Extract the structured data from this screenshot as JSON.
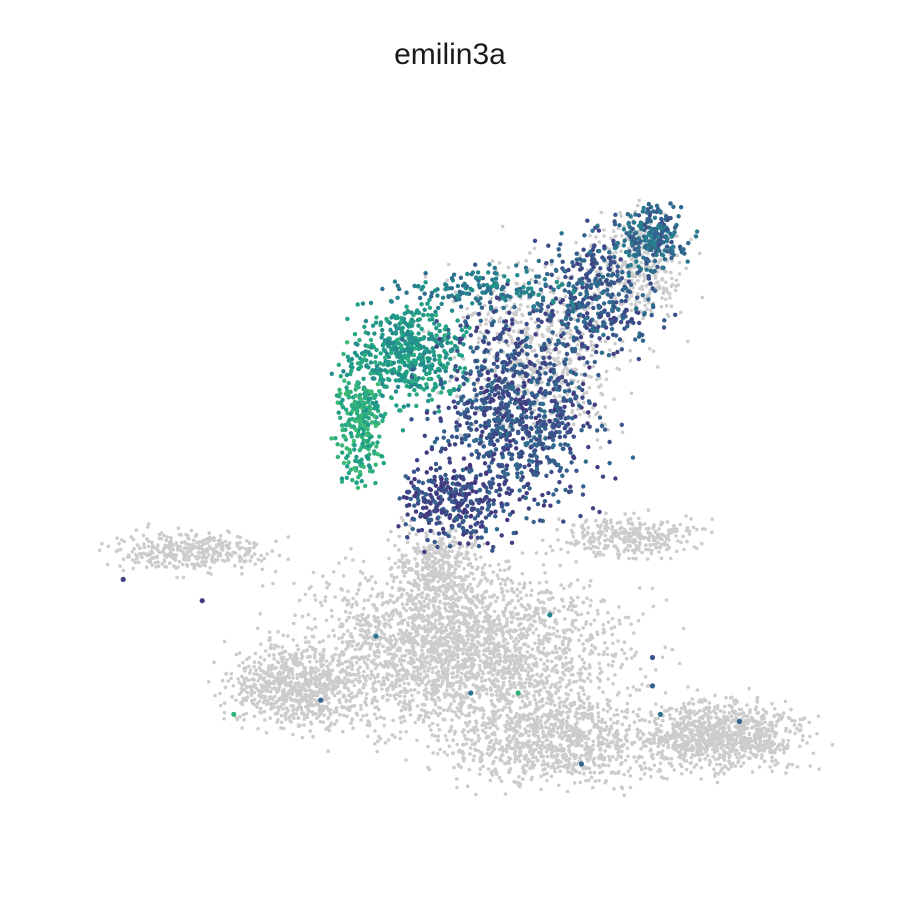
{
  "chart_data": {
    "type": "scatter",
    "title": "emilin3a",
    "xlabel": "",
    "ylabel": "",
    "axes_visible": false,
    "grid": false,
    "legend": "none",
    "xlim": [
      0,
      100
    ],
    "ylim": [
      0,
      100
    ],
    "colors": {
      "background_cells": "#cccccc",
      "expression_low": "#46337e",
      "expression_mid": "#277f8e",
      "expression_high": "#3fbc73"
    },
    "expression_scale": [
      0,
      1
    ],
    "series": [
      {
        "role": "non-expressing cells (grey)",
        "clusters": [
          {
            "cx": 51,
            "cy": 26,
            "sx": 14,
            "sy": 8,
            "n": 2600
          },
          {
            "cx": 30,
            "cy": 21,
            "sx": 6,
            "sy": 4,
            "n": 700
          },
          {
            "cx": 84,
            "cy": 14,
            "sx": 7,
            "sy": 3.5,
            "n": 900
          },
          {
            "cx": 63,
            "cy": 13,
            "sx": 10,
            "sy": 4,
            "n": 900
          },
          {
            "cx": 17,
            "cy": 40,
            "sx": 7,
            "sy": 2,
            "n": 350
          },
          {
            "cx": 72,
            "cy": 42,
            "sx": 6,
            "sy": 2,
            "n": 300
          },
          {
            "cx": 48,
            "cy": 38,
            "sx": 4,
            "sy": 4,
            "n": 350
          },
          {
            "cx": 60,
            "cy": 68,
            "sx": 8,
            "sy": 9,
            "n": 600
          },
          {
            "cx": 73,
            "cy": 80,
            "sx": 4,
            "sy": 5,
            "n": 350
          }
        ]
      },
      {
        "role": "expressing cells (viridis)",
        "clusters": [
          {
            "cx": 44,
            "cy": 68,
            "sx": 5,
            "sy": 5,
            "n": 500,
            "expr": 0.7
          },
          {
            "cx": 38,
            "cy": 58,
            "sx": 2,
            "sy": 6,
            "n": 250,
            "expr": 0.85
          },
          {
            "cx": 58,
            "cy": 60,
            "sx": 7,
            "sy": 10,
            "n": 900,
            "expr": 0.2
          },
          {
            "cx": 68,
            "cy": 76,
            "sx": 5,
            "sy": 6,
            "n": 350,
            "expr": 0.25
          },
          {
            "cx": 75,
            "cy": 84,
            "sx": 3,
            "sy": 3,
            "n": 220,
            "expr": 0.35
          },
          {
            "cx": 50,
            "cy": 47,
            "sx": 5,
            "sy": 4,
            "n": 300,
            "expr": 0.15
          },
          {
            "cx": 55,
            "cy": 77,
            "sx": 8,
            "sy": 2,
            "n": 150,
            "expr": 0.5
          }
        ]
      }
    ],
    "sparse_points": [
      {
        "x": 8,
        "y": 36,
        "expr": 0.1
      },
      {
        "x": 18,
        "y": 33,
        "expr": 0.05
      },
      {
        "x": 40,
        "y": 28,
        "expr": 0.45
      },
      {
        "x": 22,
        "y": 17,
        "expr": 0.9
      },
      {
        "x": 33,
        "y": 19,
        "expr": 0.3
      },
      {
        "x": 52,
        "y": 20,
        "expr": 0.4
      },
      {
        "x": 58,
        "y": 20,
        "expr": 0.9
      },
      {
        "x": 62,
        "y": 31,
        "expr": 0.55
      },
      {
        "x": 75,
        "y": 21,
        "expr": 0.3
      },
      {
        "x": 76,
        "y": 17,
        "expr": 0.4
      },
      {
        "x": 75,
        "y": 25,
        "expr": 0.2
      },
      {
        "x": 86,
        "y": 16,
        "expr": 0.3
      },
      {
        "x": 66,
        "y": 10,
        "expr": 0.3
      }
    ]
  }
}
